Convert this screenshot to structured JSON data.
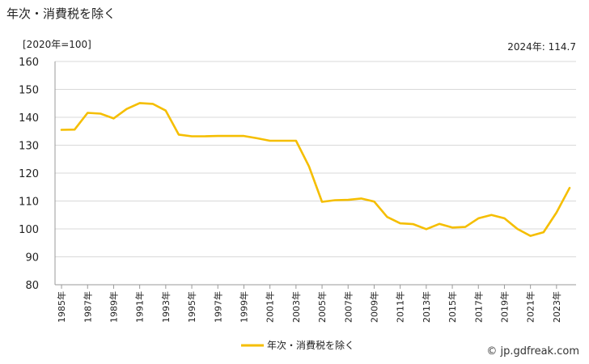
{
  "title": "年次・消費税を除く",
  "unit_label": "[2020年=100]",
  "latest_label": "2024年: 114.7",
  "source": "© jp.gdfreak.com",
  "chart_data": {
    "type": "line",
    "title": "年次・消費税を除く",
    "x": [
      1985,
      1986,
      1987,
      1988,
      1989,
      1990,
      1991,
      1992,
      1993,
      1994,
      1995,
      1996,
      1997,
      1998,
      1999,
      2000,
      2001,
      2002,
      2003,
      2004,
      2005,
      2006,
      2007,
      2008,
      2009,
      2010,
      2011,
      2012,
      2013,
      2014,
      2015,
      2016,
      2017,
      2018,
      2019,
      2020,
      2021,
      2022,
      2023,
      2024
    ],
    "x_tick_labels": [
      "1985年",
      "1987年",
      "1989年",
      "1991年",
      "1993年",
      "1995年",
      "1997年",
      "1999年",
      "2001年",
      "2003年",
      "2005年",
      "2007年",
      "2009年",
      "2011年",
      "2013年",
      "2015年",
      "2017年",
      "2019年",
      "2021年",
      "2023年"
    ],
    "x_tick_values": [
      1985,
      1987,
      1989,
      1991,
      1993,
      1995,
      1997,
      1999,
      2001,
      2003,
      2005,
      2007,
      2009,
      2011,
      2013,
      2015,
      2017,
      2019,
      2021,
      2023
    ],
    "series": [
      {
        "name": "年次・消費税を除く",
        "color": "#f5be00",
        "values": [
          135.5,
          135.6,
          141.6,
          141.3,
          139.6,
          143.0,
          145.1,
          144.8,
          142.4,
          133.8,
          133.2,
          133.2,
          133.3,
          133.3,
          133.3,
          132.5,
          131.6,
          131.6,
          131.6,
          122.4,
          109.7,
          110.3,
          110.4,
          110.9,
          109.8,
          104.3,
          102.0,
          101.7,
          99.9,
          101.8,
          100.5,
          100.7,
          103.8,
          105.0,
          103.8,
          100.0,
          97.5,
          98.8,
          105.9,
          114.7
        ]
      }
    ],
    "ylim": [
      80,
      160
    ],
    "y_ticks": [
      80,
      90,
      100,
      110,
      120,
      130,
      140,
      150,
      160
    ],
    "grid": "horizontal",
    "legend": "bottom"
  }
}
